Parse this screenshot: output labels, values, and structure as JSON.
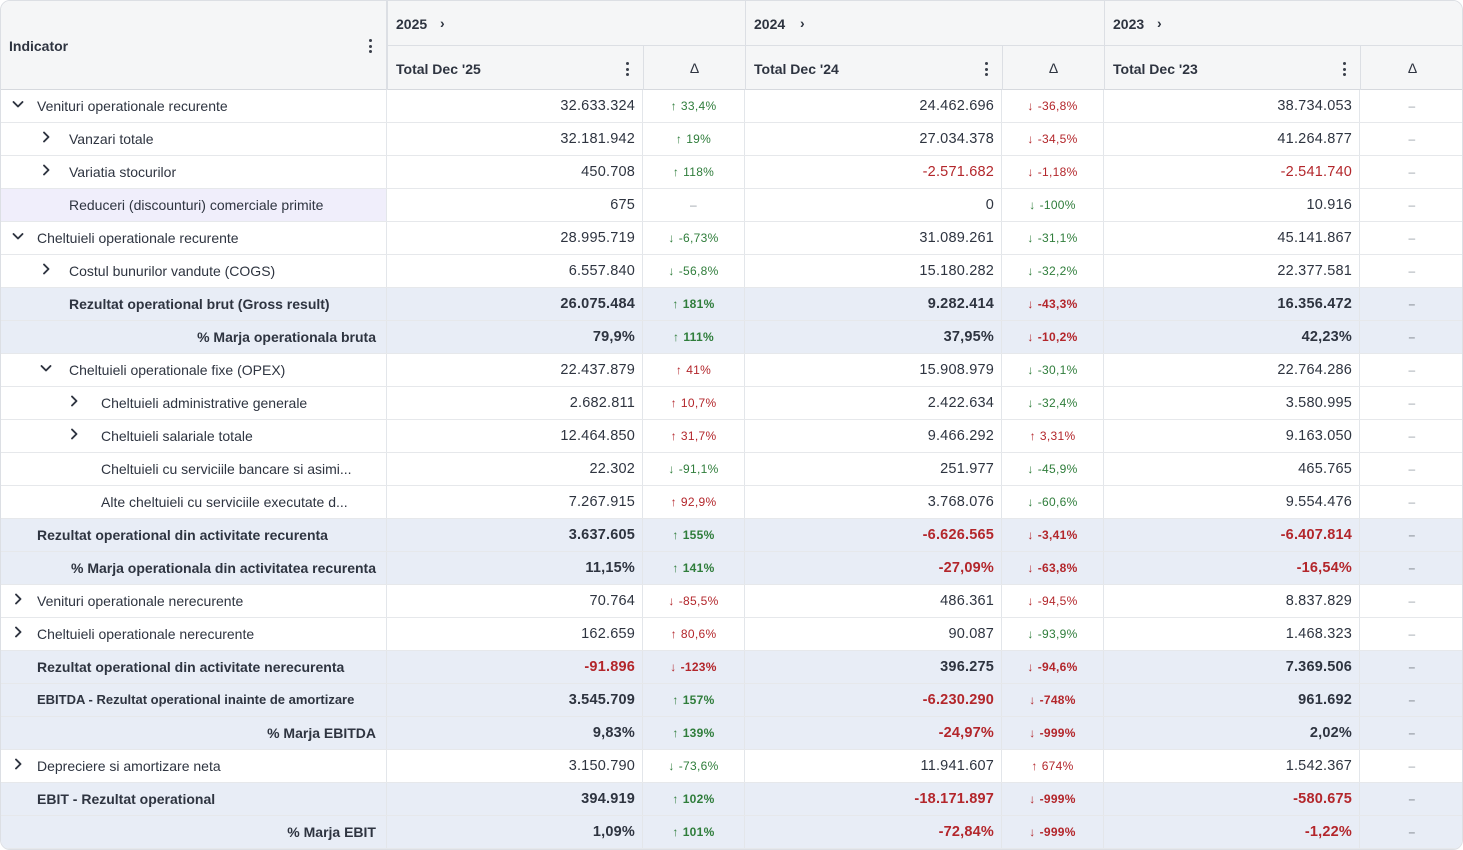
{
  "header": {
    "indicator_label": "Indicator",
    "groups": [
      {
        "year": "2025",
        "total_label": "Total Dec '25",
        "delta_label": "Δ"
      },
      {
        "year": "2024",
        "total_label": "Total Dec '24",
        "delta_label": "Δ"
      },
      {
        "year": "2023",
        "total_label": "Total Dec '23",
        "delta_label": "Δ"
      }
    ]
  },
  "icons": {
    "expand": "chevron-right-icon",
    "collapse": "chevron-down-icon",
    "menu": "vertical-dots-icon",
    "up": "arrow-up-icon",
    "down": "arrow-down-icon"
  },
  "colors": {
    "negative": "#b3262b",
    "positive": "#2f7d3b",
    "total_row_bg": "#e8edf6",
    "selected_bg": "#f0eefb"
  },
  "rows": [
    {
      "label": "Venituri operationale recurente",
      "level": 0,
      "toggle": "collapse",
      "total": false,
      "v1": "32.633.324",
      "d1": "33,4%",
      "d1dir": "up",
      "d1tone": "good",
      "v2": "24.462.696",
      "d2": "-36,8%",
      "d2dir": "down",
      "d2tone": "bad",
      "v3": "38.734.053",
      "d3": "–"
    },
    {
      "label": "Vanzari totale",
      "level": 1,
      "toggle": "expand",
      "total": false,
      "v1": "32.181.942",
      "d1": "19%",
      "d1dir": "up",
      "d1tone": "good",
      "v2": "27.034.378",
      "d2": "-34,5%",
      "d2dir": "down",
      "d2tone": "bad",
      "v3": "41.264.877",
      "d3": "–"
    },
    {
      "label": "Variatia stocurilor",
      "level": 1,
      "toggle": "expand",
      "total": false,
      "v1": "450.708",
      "d1": "118%",
      "d1dir": "up",
      "d1tone": "good",
      "v2": "-2.571.682",
      "v2neg": true,
      "d2": "-1,18%",
      "d2dir": "down",
      "d2tone": "bad",
      "v3": "-2.541.740",
      "v3neg": true,
      "d3": "–"
    },
    {
      "label": "Reduceri (discounturi) comerciale primite",
      "level": 1,
      "toggle": "none",
      "total": false,
      "selected": true,
      "v1": "675",
      "d1": "–",
      "d1dir": "none",
      "v2": "0",
      "d2": "-100%",
      "d2dir": "down",
      "d2tone": "good",
      "v3": "10.916",
      "d3": "–"
    },
    {
      "label": "Cheltuieli operationale recurente",
      "level": 0,
      "toggle": "collapse",
      "total": false,
      "v1": "28.995.719",
      "d1": "-6,73%",
      "d1dir": "down",
      "d1tone": "good",
      "v2": "31.089.261",
      "d2": "-31,1%",
      "d2dir": "down",
      "d2tone": "good",
      "v3": "45.141.867",
      "d3": "–"
    },
    {
      "label": "Costul bunurilor vandute (COGS)",
      "level": 1,
      "toggle": "expand",
      "total": false,
      "v1": "6.557.840",
      "d1": "-56,8%",
      "d1dir": "down",
      "d1tone": "good",
      "v2": "15.180.282",
      "d2": "-32,2%",
      "d2dir": "down",
      "d2tone": "good",
      "v3": "22.377.581",
      "d3": "–"
    },
    {
      "label": "Rezultat operational brut (Gross result)",
      "level": 1,
      "toggle": "none",
      "total": true,
      "v1": "26.075.484",
      "d1": "181%",
      "d1dir": "up",
      "d1tone": "good",
      "v2": "9.282.414",
      "d2": "-43,3%",
      "d2dir": "down",
      "d2tone": "bad",
      "v3": "16.356.472",
      "d3": "–"
    },
    {
      "label": "% Marja operationala bruta",
      "level": 1,
      "toggle": "none",
      "total": true,
      "align": "right",
      "v1": "79,9%",
      "d1": "111%",
      "d1dir": "up",
      "d1tone": "good",
      "v2": "37,95%",
      "d2": "-10,2%",
      "d2dir": "down",
      "d2tone": "bad",
      "v3": "42,23%",
      "d3": "–"
    },
    {
      "label": "Cheltuieli operationale fixe (OPEX)",
      "level": 1,
      "toggle": "collapse",
      "total": false,
      "v1": "22.437.879",
      "d1": "41%",
      "d1dir": "up",
      "d1tone": "bad",
      "v2": "15.908.979",
      "d2": "-30,1%",
      "d2dir": "down",
      "d2tone": "good",
      "v3": "22.764.286",
      "d3": "–"
    },
    {
      "label": "Cheltuieli administrative generale",
      "level": 2,
      "toggle": "expand",
      "total": false,
      "v1": "2.682.811",
      "d1": "10,7%",
      "d1dir": "up",
      "d1tone": "bad",
      "v2": "2.422.634",
      "d2": "-32,4%",
      "d2dir": "down",
      "d2tone": "good",
      "v3": "3.580.995",
      "d3": "–"
    },
    {
      "label": "Cheltuieli salariale totale",
      "level": 2,
      "toggle": "expand",
      "total": false,
      "v1": "12.464.850",
      "d1": "31,7%",
      "d1dir": "up",
      "d1tone": "bad",
      "v2": "9.466.292",
      "d2": "3,31%",
      "d2dir": "up",
      "d2tone": "bad",
      "v3": "9.163.050",
      "d3": "–"
    },
    {
      "label": "Cheltuieli cu serviciile bancare si asimi...",
      "level": 2,
      "toggle": "none",
      "total": false,
      "v1": "22.302",
      "d1": "-91,1%",
      "d1dir": "down",
      "d1tone": "good",
      "v2": "251.977",
      "d2": "-45,9%",
      "d2dir": "down",
      "d2tone": "good",
      "v3": "465.765",
      "d3": "–"
    },
    {
      "label": "Alte cheltuieli cu serviciile executate d...",
      "level": 2,
      "toggle": "none",
      "total": false,
      "v1": "7.267.915",
      "d1": "92,9%",
      "d1dir": "up",
      "d1tone": "bad",
      "v2": "3.768.076",
      "d2": "-60,6%",
      "d2dir": "down",
      "d2tone": "good",
      "v3": "9.554.476",
      "d3": "–"
    },
    {
      "label": "Rezultat operational din activitate recurenta",
      "level": 0,
      "toggle": "none",
      "total": true,
      "v1": "3.637.605",
      "d1": "155%",
      "d1dir": "up",
      "d1tone": "good",
      "v2": "-6.626.565",
      "v2neg": true,
      "d2": "-3,41%",
      "d2dir": "down",
      "d2tone": "bad",
      "v3": "-6.407.814",
      "v3neg": true,
      "d3": "–"
    },
    {
      "label": "% Marja operationala din activitatea recurenta",
      "level": 0,
      "toggle": "none",
      "total": true,
      "align": "right",
      "v1": "11,15%",
      "d1": "141%",
      "d1dir": "up",
      "d1tone": "good",
      "v2": "-27,09%",
      "v2neg": true,
      "d2": "-63,8%",
      "d2dir": "down",
      "d2tone": "bad",
      "v3": "-16,54%",
      "v3neg": true,
      "d3": "–"
    },
    {
      "label": "Venituri operationale nerecurente",
      "level": 0,
      "toggle": "expand",
      "total": false,
      "v1": "70.764",
      "d1": "-85,5%",
      "d1dir": "down",
      "d1tone": "bad",
      "v2": "486.361",
      "d2": "-94,5%",
      "d2dir": "down",
      "d2tone": "bad",
      "v3": "8.837.829",
      "d3": "–"
    },
    {
      "label": "Cheltuieli operationale nerecurente",
      "level": 0,
      "toggle": "expand",
      "total": false,
      "v1": "162.659",
      "d1": "80,6%",
      "d1dir": "up",
      "d1tone": "bad",
      "v2": "90.087",
      "d2": "-93,9%",
      "d2dir": "down",
      "d2tone": "good",
      "v3": "1.468.323",
      "d3": "–"
    },
    {
      "label": "Rezultat operational din activitate nerecurenta",
      "level": 0,
      "toggle": "none",
      "total": true,
      "v1": "-91.896",
      "v1neg": true,
      "d1": "-123%",
      "d1dir": "down",
      "d1tone": "bad",
      "v2": "396.275",
      "d2": "-94,6%",
      "d2dir": "down",
      "d2tone": "bad",
      "v3": "7.369.506",
      "d3": "–"
    },
    {
      "label": "EBITDA - Rezultat operational inainte de amortizare",
      "level": 0,
      "toggle": "none",
      "total": true,
      "small": true,
      "v1": "3.545.709",
      "d1": "157%",
      "d1dir": "up",
      "d1tone": "good",
      "v2": "-6.230.290",
      "v2neg": true,
      "d2": "-748%",
      "d2dir": "down",
      "d2tone": "bad",
      "v3": "961.692",
      "d3": "–"
    },
    {
      "label": "% Marja EBITDA",
      "level": 0,
      "toggle": "none",
      "total": true,
      "align": "right",
      "v1": "9,83%",
      "d1": "139%",
      "d1dir": "up",
      "d1tone": "good",
      "v2": "-24,97%",
      "v2neg": true,
      "d2": "-999%",
      "d2dir": "down",
      "d2tone": "bad",
      "v3": "2,02%",
      "d3": "–"
    },
    {
      "label": "Depreciere si amortizare neta",
      "level": 0,
      "toggle": "expand",
      "total": false,
      "v1": "3.150.790",
      "d1": "-73,6%",
      "d1dir": "down",
      "d1tone": "good",
      "v2": "11.941.607",
      "d2": "674%",
      "d2dir": "up",
      "d2tone": "bad",
      "v3": "1.542.367",
      "d3": "–"
    },
    {
      "label": "EBIT - Rezultat operational",
      "level": 0,
      "toggle": "none",
      "total": true,
      "v1": "394.919",
      "d1": "102%",
      "d1dir": "up",
      "d1tone": "good",
      "v2": "-18.171.897",
      "v2neg": true,
      "d2": "-999%",
      "d2dir": "down",
      "d2tone": "bad",
      "v3": "-580.675",
      "v3neg": true,
      "d3": "–"
    },
    {
      "label": "% Marja EBIT",
      "level": 0,
      "toggle": "none",
      "total": true,
      "align": "right",
      "v1": "1,09%",
      "d1": "101%",
      "d1dir": "up",
      "d1tone": "good",
      "v2": "-72,84%",
      "v2neg": true,
      "d2": "-999%",
      "d2dir": "down",
      "d2tone": "bad",
      "v3": "-1,22%",
      "v3neg": true,
      "d3": "–"
    }
  ]
}
